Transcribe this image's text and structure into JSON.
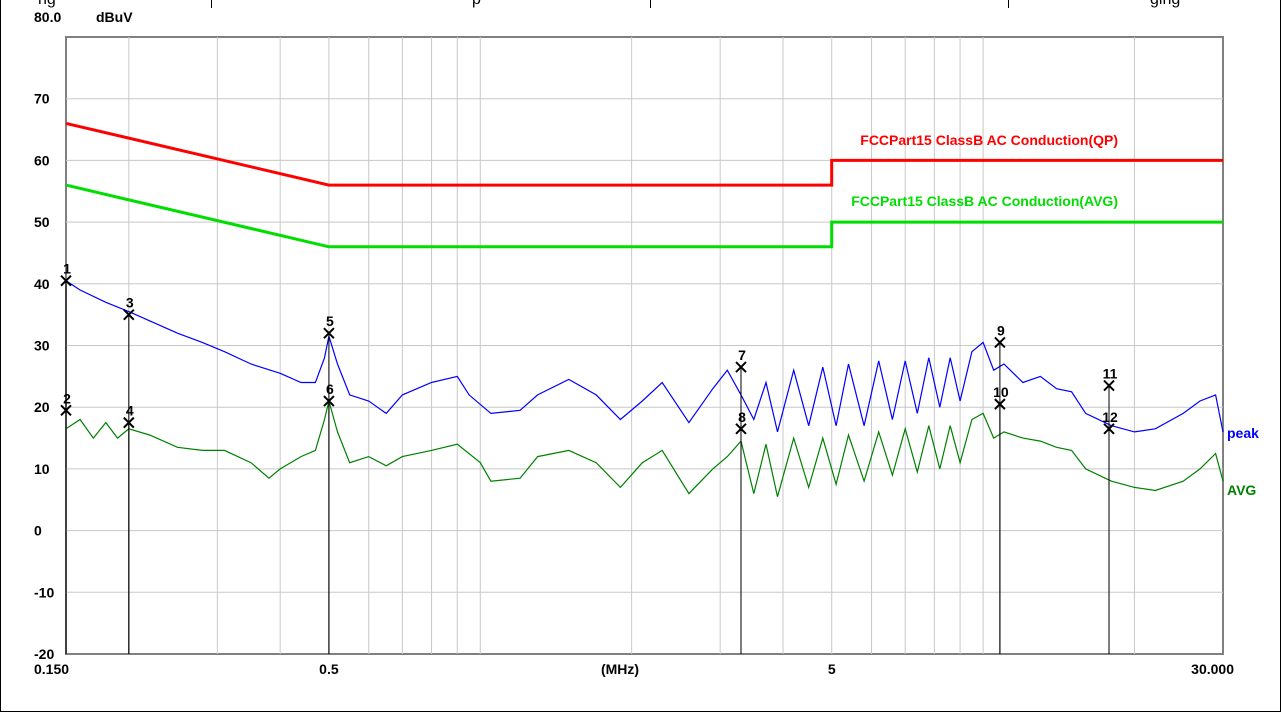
{
  "top_strip": {
    "fragments": [
      "ng",
      "p",
      "ging"
    ]
  },
  "chart_data": {
    "type": "line",
    "ylabel_unit": "dBuV",
    "x_unit_label": "(MHz)",
    "x_scale": "log",
    "xlim": [
      0.15,
      30.0
    ],
    "ylim": [
      -20,
      80
    ],
    "grid": true,
    "y_ticks": [
      {
        "value": 80,
        "label": "80.0"
      },
      {
        "value": 70,
        "label": "70"
      },
      {
        "value": 60,
        "label": "60"
      },
      {
        "value": 50,
        "label": "50"
      },
      {
        "value": 40,
        "label": "40"
      },
      {
        "value": 30,
        "label": "30"
      },
      {
        "value": 20,
        "label": "20"
      },
      {
        "value": 10,
        "label": "10"
      },
      {
        "value": 0,
        "label": "0"
      },
      {
        "value": -10,
        "label": "-10"
      },
      {
        "value": -20,
        "label": "-20"
      }
    ],
    "x_ticks": [
      {
        "value": 0.15,
        "label": "0.150"
      },
      {
        "value": 0.5,
        "label": "0.5"
      },
      {
        "value": 5,
        "label": "5"
      },
      {
        "value": 30,
        "label": "30.000"
      }
    ],
    "x_grid": [
      0.2,
      0.3,
      0.4,
      0.5,
      0.6,
      0.7,
      0.8,
      0.9,
      1,
      2,
      3,
      4,
      5,
      6,
      7,
      8,
      9,
      10,
      20
    ],
    "limits": [
      {
        "name": "FCCPart15 ClassB AC Conduction(QP)",
        "color": "#ff0000",
        "points": [
          [
            0.15,
            66
          ],
          [
            0.5,
            56
          ],
          [
            5,
            56
          ],
          [
            5,
            60
          ],
          [
            30,
            60
          ]
        ]
      },
      {
        "name": "FCCPart15 ClassB AC Conduction(AVG)",
        "color": "#00dd00",
        "points": [
          [
            0.15,
            56
          ],
          [
            0.5,
            46
          ],
          [
            5,
            46
          ],
          [
            5,
            50
          ],
          [
            30,
            50
          ]
        ]
      }
    ],
    "series": [
      {
        "name": "peak",
        "color": "#0000ff",
        "points": [
          [
            0.15,
            40.5
          ],
          [
            0.16,
            39
          ],
          [
            0.18,
            37
          ],
          [
            0.2,
            35.5
          ],
          [
            0.22,
            34
          ],
          [
            0.25,
            32
          ],
          [
            0.28,
            30.5
          ],
          [
            0.31,
            29
          ],
          [
            0.35,
            27
          ],
          [
            0.4,
            25.5
          ],
          [
            0.44,
            24
          ],
          [
            0.47,
            24
          ],
          [
            0.49,
            28
          ],
          [
            0.5,
            31.5
          ],
          [
            0.52,
            27
          ],
          [
            0.55,
            22
          ],
          [
            0.6,
            21
          ],
          [
            0.65,
            19
          ],
          [
            0.7,
            22
          ],
          [
            0.8,
            24
          ],
          [
            0.9,
            25
          ],
          [
            0.95,
            22
          ],
          [
            1.05,
            19
          ],
          [
            1.2,
            19.5
          ],
          [
            1.3,
            22
          ],
          [
            1.5,
            24.5
          ],
          [
            1.7,
            22
          ],
          [
            1.9,
            18
          ],
          [
            2.1,
            21
          ],
          [
            2.3,
            24
          ],
          [
            2.6,
            17.5
          ],
          [
            2.9,
            23
          ],
          [
            3.1,
            26
          ],
          [
            3.3,
            22
          ],
          [
            3.5,
            18
          ],
          [
            3.7,
            24
          ],
          [
            3.9,
            16
          ],
          [
            4.2,
            26
          ],
          [
            4.5,
            17
          ],
          [
            4.8,
            26.5
          ],
          [
            5.1,
            17
          ],
          [
            5.4,
            27
          ],
          [
            5.8,
            17
          ],
          [
            6.2,
            27.5
          ],
          [
            6.6,
            18
          ],
          [
            7,
            27.5
          ],
          [
            7.4,
            19
          ],
          [
            7.8,
            28
          ],
          [
            8.2,
            20
          ],
          [
            8.6,
            28
          ],
          [
            9,
            21
          ],
          [
            9.5,
            29
          ],
          [
            10,
            30.5
          ],
          [
            10.5,
            26
          ],
          [
            11,
            27
          ],
          [
            12,
            24
          ],
          [
            13,
            25
          ],
          [
            14,
            23
          ],
          [
            15,
            22.5
          ],
          [
            16,
            19
          ],
          [
            18,
            17
          ],
          [
            20,
            16
          ],
          [
            22,
            16.5
          ],
          [
            25,
            19
          ],
          [
            27,
            21
          ],
          [
            29,
            22
          ],
          [
            30,
            16
          ]
        ]
      },
      {
        "name": "AVG",
        "color": "#008000",
        "points": [
          [
            0.15,
            16.5
          ],
          [
            0.16,
            18
          ],
          [
            0.17,
            15
          ],
          [
            0.18,
            17.5
          ],
          [
            0.19,
            15
          ],
          [
            0.2,
            16.5
          ],
          [
            0.22,
            15.5
          ],
          [
            0.25,
            13.5
          ],
          [
            0.28,
            13
          ],
          [
            0.31,
            13
          ],
          [
            0.35,
            11
          ],
          [
            0.38,
            8.5
          ],
          [
            0.4,
            10
          ],
          [
            0.44,
            12
          ],
          [
            0.47,
            13
          ],
          [
            0.49,
            18
          ],
          [
            0.5,
            21
          ],
          [
            0.52,
            16
          ],
          [
            0.55,
            11
          ],
          [
            0.6,
            12
          ],
          [
            0.65,
            10.5
          ],
          [
            0.7,
            12
          ],
          [
            0.8,
            13
          ],
          [
            0.9,
            14
          ],
          [
            1,
            11
          ],
          [
            1.05,
            8
          ],
          [
            1.2,
            8.5
          ],
          [
            1.3,
            12
          ],
          [
            1.5,
            13
          ],
          [
            1.7,
            11
          ],
          [
            1.9,
            7
          ],
          [
            2.1,
            11
          ],
          [
            2.3,
            13
          ],
          [
            2.6,
            6
          ],
          [
            2.9,
            10
          ],
          [
            3.1,
            12
          ],
          [
            3.3,
            14.5
          ],
          [
            3.5,
            6
          ],
          [
            3.7,
            14
          ],
          [
            3.9,
            5.5
          ],
          [
            4.2,
            15
          ],
          [
            4.5,
            7
          ],
          [
            4.8,
            15
          ],
          [
            5.1,
            7.5
          ],
          [
            5.4,
            15.5
          ],
          [
            5.8,
            8
          ],
          [
            6.2,
            16
          ],
          [
            6.6,
            9
          ],
          [
            7,
            16.5
          ],
          [
            7.4,
            9.5
          ],
          [
            7.8,
            17
          ],
          [
            8.2,
            10
          ],
          [
            8.6,
            17
          ],
          [
            9,
            11
          ],
          [
            9.5,
            18
          ],
          [
            10,
            19
          ],
          [
            10.5,
            15
          ],
          [
            11,
            16
          ],
          [
            12,
            15
          ],
          [
            13,
            14.5
          ],
          [
            14,
            13.5
          ],
          [
            15,
            13
          ],
          [
            16,
            10
          ],
          [
            18,
            8
          ],
          [
            20,
            7
          ],
          [
            22,
            6.5
          ],
          [
            25,
            8
          ],
          [
            27,
            10
          ],
          [
            29,
            12.5
          ],
          [
            30,
            8
          ]
        ]
      }
    ],
    "markers": [
      {
        "label": "1",
        "x": 0.15,
        "y": 40.5
      },
      {
        "label": "2",
        "x": 0.15,
        "y": 19.5
      },
      {
        "label": "3",
        "x": 0.2,
        "y": 35
      },
      {
        "label": "4",
        "x": 0.2,
        "y": 17.5
      },
      {
        "label": "5",
        "x": 0.5,
        "y": 32
      },
      {
        "label": "6",
        "x": 0.5,
        "y": 21
      },
      {
        "label": "7",
        "x": 3.3,
        "y": 26.5
      },
      {
        "label": "8",
        "x": 3.3,
        "y": 16.5
      },
      {
        "label": "9",
        "x": 10.8,
        "y": 30.5
      },
      {
        "label": "10",
        "x": 10.8,
        "y": 20.5
      },
      {
        "label": "11",
        "x": 17.8,
        "y": 23.5
      },
      {
        "label": "12",
        "x": 17.8,
        "y": 16.5
      }
    ]
  }
}
